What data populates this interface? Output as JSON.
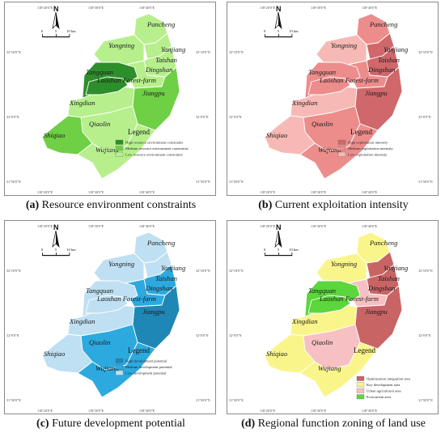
{
  "coords": {
    "top": [
      "118°20'0\"E",
      "118°30'0\"E",
      "118°40'0\"E"
    ],
    "bottom": [
      "118°20'0\"E",
      "118°30'0\"E",
      "118°40'0\"E"
    ],
    "left": [
      "32°10'0\"N",
      "32°0'0\"N",
      "31°50'0\"N"
    ],
    "right": [
      "32°10'0\"N",
      "32°0'0\"N",
      "31°50'0\"N"
    ]
  },
  "scale": {
    "labels": [
      "0",
      "5",
      "10 km"
    ]
  },
  "north": "N",
  "legend_title": "Legend",
  "places": {
    "pancheng": "Pancheng",
    "yongning": "Yongning",
    "yanjiang": "Yanjiang",
    "taishan": "Taishan",
    "dingshan": "Dingshan",
    "tangquan": "Tangquan",
    "laoshan": "Laoshan Forest-farm",
    "jiangpu": "Jiangpu",
    "xingdian": "Xingdian",
    "qiaolin": "Qiaolin",
    "shiqiao": "Shiqiao",
    "wujiang": "Wujiang"
  },
  "panels": [
    {
      "caption_letter": "(a)",
      "caption_text": " Resource environment constraints",
      "colors": {
        "dark": "#2d8f2b",
        "medium": "#6fcf45",
        "light": "#b7ef8c"
      },
      "legend": [
        {
          "label": "High resource environment constraints",
          "color": "#2d8f2b"
        },
        {
          "label": "Medium resource environment constraints",
          "color": "#6fcf45"
        },
        {
          "label": "Low resource environment constraints",
          "color": "#b7ef8c"
        }
      ]
    },
    {
      "caption_letter": "(b)",
      "caption_text": " Current exploitation intensity",
      "colors": {
        "dark": "#d0676a",
        "medium": "#ec8d8c",
        "light": "#f7b9b5"
      },
      "legend": [
        {
          "label": "High exploitation intensity",
          "color": "#d0676a"
        },
        {
          "label": "Medium exploitation intensity",
          "color": "#ec8d8c"
        },
        {
          "label": "Low exploitation intensity",
          "color": "#f7b9b5"
        }
      ]
    },
    {
      "caption_letter": "(c)",
      "caption_text": " Future development potential",
      "colors": {
        "dark": "#1e87b5",
        "medium": "#2ca9df",
        "light": "#bfe0f2"
      },
      "legend": [
        {
          "label": "High development potential",
          "color": "#1e87b5"
        },
        {
          "label": "Medium development potential",
          "color": "#2ca9df"
        },
        {
          "label": "Low development potential",
          "color": "#bfe0f2"
        }
      ]
    },
    {
      "caption_letter": "(d)",
      "caption_text": " Regional function zoning of land use",
      "colors": {
        "opt": "#c96465",
        "key": "#faf58a",
        "urb": "#f7c0c2",
        "eco": "#5bd63c"
      },
      "legend": [
        {
          "label": "Optimization integration area",
          "color": "#c96465"
        },
        {
          "label": "Key development area",
          "color": "#faf58a"
        },
        {
          "label": "Urban agricultural area",
          "color": "#f7c0c2"
        },
        {
          "label": "Ecotourism area",
          "color": "#5bd63c"
        }
      ]
    }
  ]
}
